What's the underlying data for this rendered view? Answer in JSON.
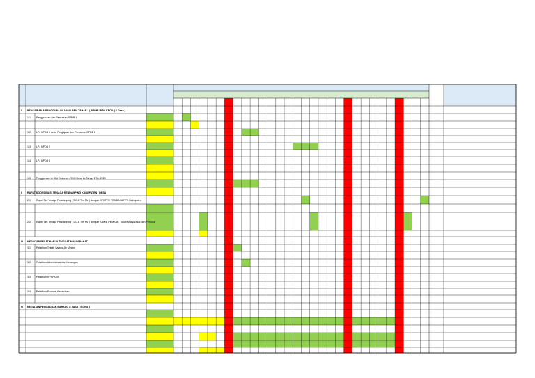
{
  "colors": {
    "header_fill": "#dce9f7",
    "subheader_fill": "#d8ecd0",
    "green": "#92d050",
    "yellow": "#ffff00",
    "red": "#ff0000",
    "border": "#000000"
  },
  "sections": [
    {
      "roman": "I",
      "title": "PENCAIRAN & PENGGUNAAN DANA BPM TAHAP 1 ( BPDB / BPD KECIL ( 6 Desa )"
    },
    {
      "roman": "II",
      "title": "RAPAT KOORDINASI TENAGA PENDAMPING KABUPATEN / DESA"
    },
    {
      "roman": "III",
      "title": "KEGIATAN PELATIHAN DI TINGKAT MASYARAKAT"
    },
    {
      "roman": "IV",
      "title": "KEGIATAN PENGADAAN BARANG & JASA ( 6 Desa )"
    }
  ],
  "items": [
    {
      "no": "1.1",
      "label": "Penggunaan dan Pencairan BPDB 1"
    },
    {
      "no": "1.2",
      "label": "LPJ BPDB 1 serta Pengajuan dan Pencairan BPDB 2"
    },
    {
      "no": "1.3",
      "label": "LPJ BPDB 2"
    },
    {
      "no": "1.4",
      "label": "LPJ BPDB 3"
    },
    {
      "no": "1.5",
      "label": "Penggunaan & Dkd Dokumen RKM Desa ke Tahap 1 TA. 2019"
    },
    {
      "no": "2.1",
      "label": "Rapat Tim Tenaga Pendamping ( DC & Tim FM ) dengan DPUPR / PEMDA BAPPE Kabupaten"
    },
    {
      "no": "2.2",
      "label": "Rapat Tim Tenaga Pendamping ( DC & Tim FM ) dengan Kades, PEMKAB, Tokoh Masyarakat dan Pemuka"
    },
    {
      "no": "3.1",
      "label": "Pelatihan Teknik Sarana Air Minum"
    },
    {
      "no": "3.2",
      "label": "Pelatihan Administrasi dan Keuangan"
    },
    {
      "no": "3.3",
      "label": "Pelatihan KPSPAMS"
    },
    {
      "no": "3.4",
      "label": "Pelatihan Promosi Kesehatan"
    }
  ]
}
